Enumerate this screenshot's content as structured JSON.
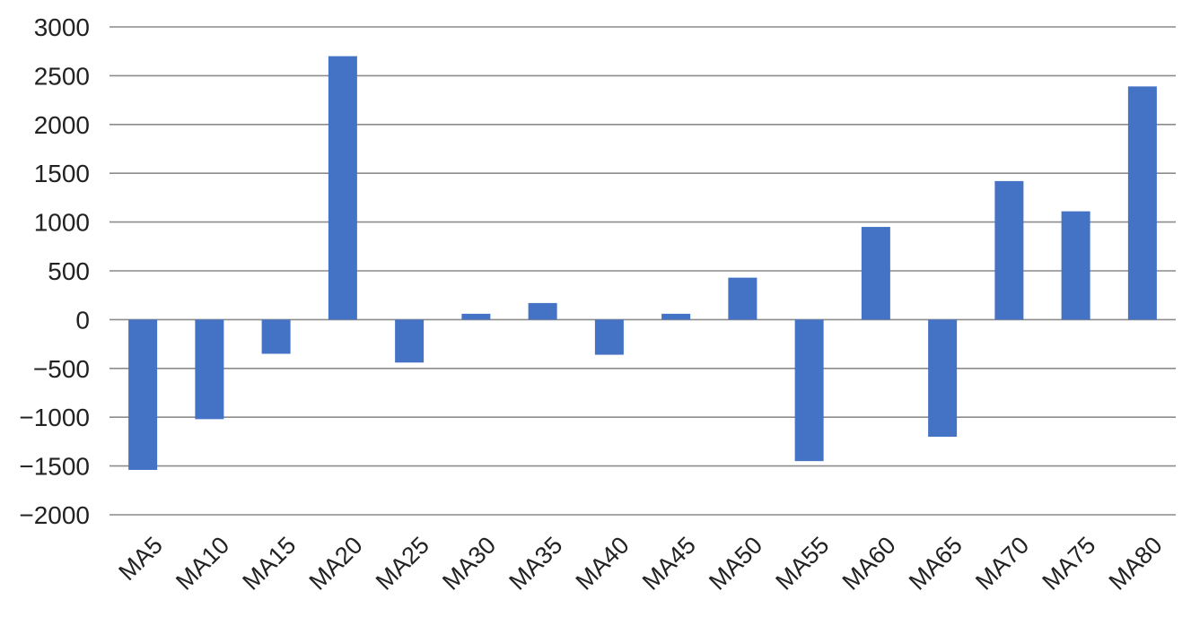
{
  "chart_data": {
    "type": "bar",
    "title": "",
    "xlabel": "",
    "ylabel": "",
    "categories": [
      "MA5",
      "MA10",
      "MA15",
      "MA20",
      "MA25",
      "MA30",
      "MA35",
      "MA40",
      "MA45",
      "MA50",
      "MA55",
      "MA60",
      "MA65",
      "MA70",
      "MA75",
      "MA80"
    ],
    "values": [
      -1540,
      -1020,
      -350,
      2700,
      -440,
      60,
      170,
      -360,
      60,
      430,
      -1450,
      950,
      -1200,
      1420,
      1110,
      2390
    ],
    "ylim": [
      -2000,
      3000
    ],
    "yticks": [
      3000,
      2500,
      2000,
      1500,
      1000,
      500,
      0,
      -500,
      -1000,
      -1500,
      -2000
    ],
    "ytick_labels": [
      "3000",
      "2500",
      "2000",
      "1500",
      "1000",
      "500",
      "0",
      "−500",
      "−1000",
      "−1500",
      "−2000"
    ],
    "grid": true,
    "legend": "none",
    "colors": {
      "bar": "#4472C4",
      "grid": "#8C8C8C",
      "text": "#222222"
    }
  }
}
